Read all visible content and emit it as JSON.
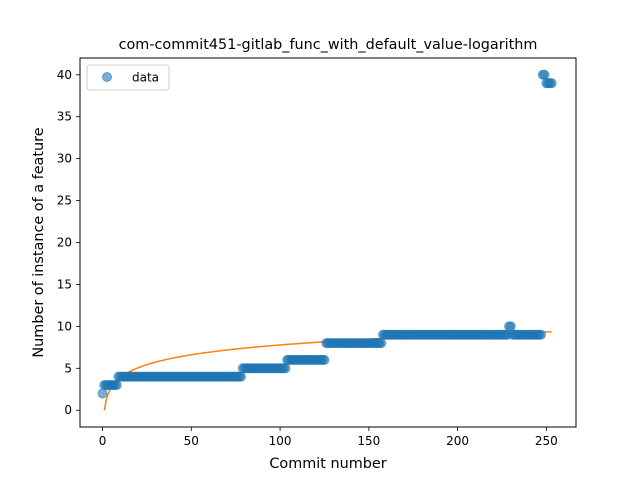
{
  "chart_data": {
    "type": "scatter",
    "title": "com-commit451-gitlab_func_with_default_value-logarithm",
    "xlabel": "Commit number",
    "ylabel": "Number of instance of a feature",
    "xlim": [
      -12.7,
      266.7
    ],
    "ylim": [
      -2.0,
      42.0
    ],
    "xticks": [
      0,
      50,
      100,
      150,
      200,
      250
    ],
    "yticks": [
      0,
      5,
      10,
      15,
      20,
      25,
      30,
      35,
      40
    ],
    "grid": false,
    "legend": {
      "position": "top-left",
      "entries": [
        "data"
      ]
    },
    "colors": {
      "data": "#1f77b4",
      "fit": "#ff7f0e"
    },
    "series": [
      {
        "name": "data",
        "kind": "scatter",
        "segments": [
          {
            "x_from": 0,
            "x_to": 0,
            "y": 2
          },
          {
            "x_from": 1,
            "x_to": 8,
            "y": 3
          },
          {
            "x_from": 9,
            "x_to": 78,
            "y": 4
          },
          {
            "x_from": 79,
            "x_to": 103,
            "y": 5
          },
          {
            "x_from": 104,
            "x_to": 125,
            "y": 6
          },
          {
            "x_from": 126,
            "x_to": 157,
            "y": 8
          },
          {
            "x_from": 158,
            "x_to": 228,
            "y": 9
          },
          {
            "x_from": 229,
            "x_to": 230,
            "y": 10
          },
          {
            "x_from": 231,
            "x_to": 247,
            "y": 9
          },
          {
            "x_from": 248,
            "x_to": 249,
            "y": 40
          },
          {
            "x_from": 250,
            "x_to": 253,
            "y": 39
          }
        ]
      },
      {
        "kind": "line",
        "model": "logarithmic",
        "a": 1.69,
        "b": 0.0,
        "x_range": [
          1,
          253
        ]
      }
    ]
  }
}
